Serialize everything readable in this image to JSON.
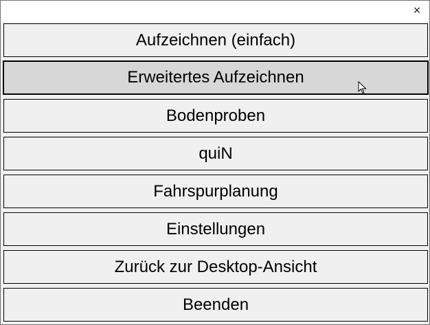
{
  "window": {
    "close_icon": "close-icon",
    "close_label": "×"
  },
  "menu": {
    "hovered_index": 1,
    "buttons": [
      {
        "label": "Aufzeichnen (einfach)"
      },
      {
        "label": "Erweitertes Aufzeichnen"
      },
      {
        "label": "Bodenproben"
      },
      {
        "label": "quiN"
      },
      {
        "label": "Fahrspurplanung"
      },
      {
        "label": "Einstellungen"
      },
      {
        "label": "Zurück zur Desktop-Ansicht"
      },
      {
        "label": "Beenden"
      }
    ]
  }
}
